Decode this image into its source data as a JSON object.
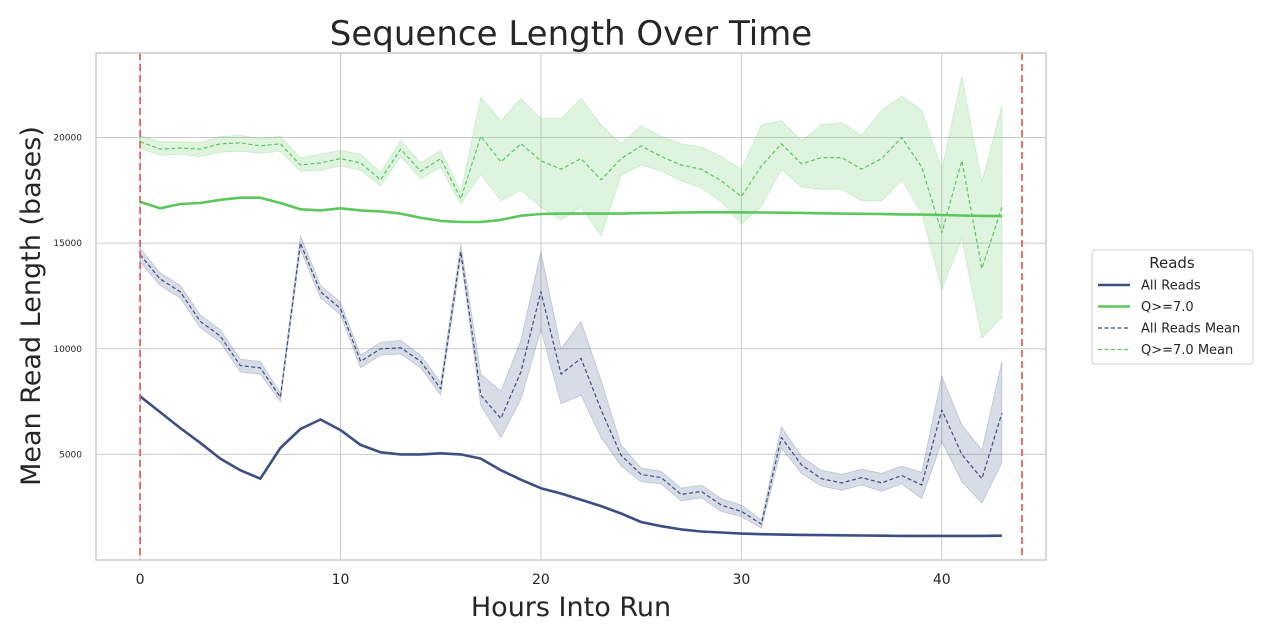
{
  "chart_data": {
    "type": "line",
    "title": "Sequence Length Over Time",
    "xlabel": "Hours Into Run",
    "ylabel": "Mean Read Length (bases)",
    "xlim": [
      -2.2,
      45.2
    ],
    "ylim": [
      0,
      24000
    ],
    "xticks": [
      0,
      10,
      20,
      30,
      40
    ],
    "yticks": [
      5000,
      10000,
      15000,
      20000
    ],
    "grid": true,
    "vlines": [
      {
        "x": 0,
        "color": "#e8504f",
        "style": "dashed"
      },
      {
        "x": 44,
        "color": "#e8504f",
        "style": "dashed"
      }
    ],
    "legend": {
      "title": "Reads",
      "placement": "outside-right",
      "entries": [
        {
          "label": "All Reads",
          "series": "all_reads"
        },
        {
          "label": "Q>=7.0",
          "series": "q7"
        },
        {
          "label": "All Reads Mean",
          "series": "all_reads_mean"
        },
        {
          "label": "Q>=7.0 Mean",
          "series": "q7_mean"
        }
      ]
    },
    "series": [
      {
        "id": "all_reads",
        "name": "All Reads",
        "color": "#3b4f83",
        "style": "solid",
        "x": [
          0,
          1,
          2,
          3,
          4,
          5,
          6,
          7,
          8,
          9,
          10,
          11,
          12,
          13,
          14,
          15,
          16,
          17,
          18,
          19,
          20,
          21,
          22,
          23,
          24,
          25,
          26,
          27,
          28,
          29,
          30,
          31,
          32,
          33,
          34,
          35,
          36,
          37,
          38,
          39,
          40,
          41,
          42,
          43
        ],
        "y": [
          7750,
          7000,
          6250,
          5550,
          4800,
          4250,
          3850,
          5300,
          6200,
          6650,
          6150,
          5450,
          5100,
          5000,
          5000,
          5050,
          5000,
          4800,
          4250,
          3800,
          3400,
          3150,
          2850,
          2550,
          2200,
          1800,
          1600,
          1450,
          1350,
          1300,
          1250,
          1220,
          1200,
          1190,
          1180,
          1170,
          1160,
          1150,
          1140,
          1140,
          1140,
          1140,
          1140,
          1150
        ]
      },
      {
        "id": "q7",
        "name": "Q>=7.0",
        "color": "#5ac85d",
        "style": "solid",
        "x": [
          0,
          1,
          2,
          3,
          4,
          5,
          6,
          7,
          8,
          9,
          10,
          11,
          12,
          13,
          14,
          15,
          16,
          17,
          18,
          19,
          20,
          21,
          22,
          23,
          24,
          25,
          26,
          27,
          28,
          29,
          30,
          31,
          32,
          33,
          34,
          35,
          36,
          37,
          38,
          39,
          40,
          41,
          42,
          43
        ],
        "y": [
          16950,
          16650,
          16850,
          16900,
          17050,
          17150,
          17150,
          16900,
          16600,
          16550,
          16650,
          16550,
          16500,
          16400,
          16200,
          16050,
          16000,
          16000,
          16100,
          16300,
          16380,
          16400,
          16400,
          16400,
          16400,
          16420,
          16430,
          16450,
          16460,
          16460,
          16460,
          16450,
          16440,
          16430,
          16410,
          16400,
          16390,
          16380,
          16360,
          16350,
          16330,
          16310,
          16290,
          16280
        ]
      },
      {
        "id": "all_reads_mean",
        "name": "All Reads Mean",
        "color": "#3b4f83",
        "style": "dashed",
        "x": [
          0,
          1,
          2,
          3,
          4,
          5,
          6,
          7,
          8,
          9,
          10,
          11,
          12,
          13,
          14,
          15,
          16,
          17,
          18,
          19,
          20,
          21,
          22,
          23,
          24,
          25,
          26,
          27,
          28,
          29,
          30,
          31,
          32,
          33,
          34,
          35,
          36,
          37,
          38,
          39,
          40,
          41,
          42,
          43
        ],
        "y": [
          14450,
          13300,
          12700,
          11300,
          10600,
          9200,
          9100,
          7700,
          15000,
          12700,
          11900,
          9400,
          10000,
          10050,
          9400,
          8100,
          14600,
          7800,
          6700,
          8900,
          12700,
          8800,
          9550,
          7100,
          4950,
          4050,
          3900,
          3100,
          3250,
          2600,
          2300,
          1700,
          5800,
          4500,
          3850,
          3650,
          3900,
          3650,
          4000,
          3550,
          7100,
          5000,
          3850,
          6950
        ]
      },
      {
        "id": "q7_mean",
        "name": "Q>=7.0 Mean",
        "color": "#5ac85d",
        "style": "dashed",
        "x": [
          0,
          1,
          2,
          3,
          4,
          5,
          6,
          7,
          8,
          9,
          10,
          11,
          12,
          13,
          14,
          15,
          16,
          17,
          18,
          19,
          20,
          21,
          22,
          23,
          24,
          25,
          26,
          27,
          28,
          29,
          30,
          31,
          32,
          33,
          34,
          35,
          36,
          37,
          38,
          39,
          40,
          41,
          42,
          43
        ],
        "y": [
          19800,
          19450,
          19500,
          19450,
          19700,
          19750,
          19600,
          19700,
          18700,
          18800,
          19000,
          18800,
          18000,
          19450,
          18400,
          19000,
          17100,
          20050,
          18850,
          19700,
          18900,
          18500,
          19000,
          18000,
          19000,
          19600,
          19100,
          18700,
          18500,
          17950,
          17200,
          18650,
          19700,
          18750,
          19050,
          19050,
          18500,
          19000,
          20000,
          18600,
          15500,
          18900,
          13800,
          16700
        ]
      }
    ],
    "bands": [
      {
        "series": "all_reads_mean",
        "color": "#3b4f83",
        "opacity": 0.2,
        "lower": [
          14100,
          13000,
          12400,
          11000,
          10300,
          8900,
          8800,
          7500,
          14700,
          12400,
          11600,
          9100,
          9700,
          9750,
          9100,
          7800,
          14300,
          7300,
          5800,
          7600,
          10900,
          7400,
          7800,
          5800,
          4450,
          3700,
          3600,
          2800,
          2950,
          2300,
          2050,
          1500,
          5300,
          4100,
          3500,
          3300,
          3550,
          3250,
          3600,
          2900,
          5600,
          3700,
          2700,
          4600
        ],
        "upper": [
          14750,
          13600,
          13000,
          11600,
          10900,
          9500,
          9400,
          7900,
          15350,
          13000,
          12200,
          9700,
          10300,
          10400,
          9700,
          8400,
          14950,
          8800,
          8000,
          10400,
          14600,
          10000,
          11300,
          8500,
          5450,
          4350,
          4200,
          3400,
          3550,
          2900,
          2600,
          1900,
          6300,
          4900,
          4250,
          4050,
          4300,
          4100,
          4450,
          4150,
          8700,
          6400,
          5200,
          9400
        ]
      },
      {
        "series": "q7_mean",
        "color": "#5ac85d",
        "opacity": 0.2,
        "lower": [
          19500,
          19150,
          19200,
          19100,
          19300,
          19350,
          19250,
          19350,
          18400,
          18450,
          18650,
          18450,
          17700,
          19100,
          18050,
          18600,
          16850,
          18250,
          17000,
          17500,
          16700,
          16100,
          16700,
          15350,
          18200,
          18700,
          18400,
          17950,
          17600,
          16950,
          15900,
          16750,
          18500,
          17650,
          17550,
          17550,
          17000,
          17000,
          18000,
          16400,
          12800,
          15200,
          10500,
          11500
        ]
      },
      {
        "series": "q7_mean",
        "color": "#5ac85d",
        "opacity": 0.2,
        "upper": [
          20100,
          19800,
          19800,
          19750,
          20050,
          20100,
          19950,
          20050,
          19050,
          19200,
          19400,
          19200,
          18350,
          19850,
          18800,
          19400,
          17400,
          21900,
          20800,
          21850,
          20900,
          20900,
          21850,
          20600,
          19700,
          20550,
          20050,
          19700,
          19550,
          19100,
          18500,
          20600,
          20800,
          19850,
          20600,
          20700,
          20100,
          21300,
          21950,
          21300,
          18500,
          22900,
          17900,
          21500
        ]
      }
    ]
  }
}
